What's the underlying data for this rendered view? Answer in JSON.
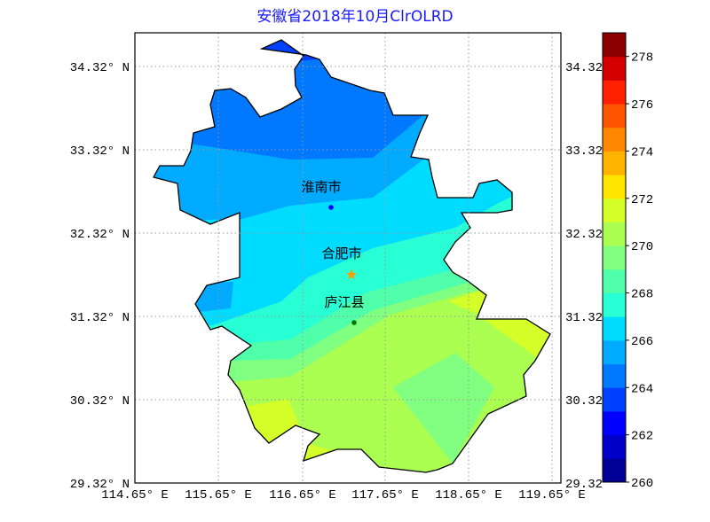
{
  "title": "安徽省2018年10月ClrOLRD",
  "axes": {
    "lat_labels": [
      "34.32° N",
      "33.32° N",
      "32.32° N",
      "31.32° N",
      "30.32° N",
      "29.32° N"
    ],
    "lat_labels_right": [
      "34.32",
      "33.32",
      "32.32",
      "31.32",
      "30.32",
      "29.32"
    ],
    "lon_labels": [
      "114.65° E",
      "115.65° E",
      "116.65° E",
      "117.65° E",
      "118.65° E",
      "119.65° E"
    ],
    "grid": true
  },
  "cities": [
    {
      "name": "淮南市",
      "marker": "dot",
      "color": "#0000ff"
    },
    {
      "name": "合肥市",
      "marker": "star",
      "color": "#ff9900"
    },
    {
      "name": "庐江县",
      "marker": "dot",
      "color": "#007700"
    }
  ],
  "colorbar": {
    "min": 260,
    "max": 279,
    "step": 1,
    "ticks": [
      "260",
      "262",
      "264",
      "266",
      "268",
      "270",
      "272",
      "274",
      "276",
      "278"
    ],
    "colors": [
      "#000096",
      "#0000c8",
      "#0000ff",
      "#0040ff",
      "#0078ff",
      "#00aaff",
      "#00dcff",
      "#28ffd4",
      "#50ffaa",
      "#80ff80",
      "#aaff50",
      "#d4ff28",
      "#ffe600",
      "#ffb400",
      "#ff8800",
      "#ff5500",
      "#ff2000",
      "#d40000",
      "#8b0000"
    ]
  }
}
